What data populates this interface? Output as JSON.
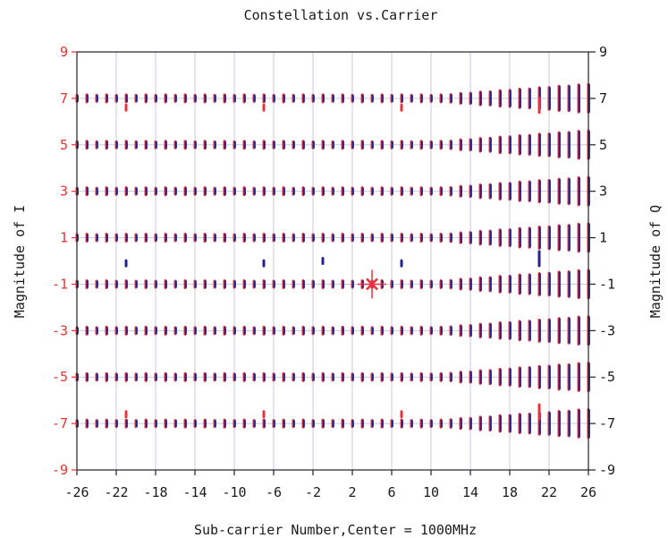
{
  "colors": {
    "series_i": "#e8323c",
    "series_q": "#23238f",
    "grid": "#c9c9e4",
    "left_ticks": "#e8322f",
    "frame": "#222222"
  },
  "chart_data": {
    "type": "scatter",
    "title": "Constellation vs.Carrier",
    "xlabel": "Sub-carrier Number,Center = 1000MHz",
    "ylabel_left": "Magnitude of I",
    "ylabel_right": "Magnitude of Q",
    "xlim": [
      -26,
      26
    ],
    "ylim": [
      -9,
      9
    ],
    "x_ticks": [
      -26,
      -22,
      -18,
      -14,
      -10,
      -6,
      -2,
      2,
      6,
      10,
      14,
      18,
      22,
      26
    ],
    "x_tick_labels": [
      "-26",
      "-22",
      "-18",
      "-14",
      "-10",
      "-6",
      "-2",
      "2",
      "6",
      "10",
      "14",
      "18",
      "22",
      "26"
    ],
    "y_ticks": [
      -9,
      -7,
      -5,
      -3,
      -1,
      1,
      3,
      5,
      7,
      9
    ],
    "y_tick_labels": [
      "-9",
      "-7",
      "-5",
      "-3",
      "-1",
      "1",
      "3",
      "5",
      "7",
      "9"
    ],
    "grid": true,
    "constellation_levels": [
      -7,
      -5,
      -3,
      -1,
      1,
      3,
      5,
      7
    ],
    "subcarriers": [
      -26,
      -25,
      -24,
      -23,
      -22,
      -21,
      -20,
      -19,
      -18,
      -17,
      -16,
      -15,
      -14,
      -13,
      -12,
      -11,
      -10,
      -9,
      -8,
      -7,
      -6,
      -5,
      -4,
      -3,
      -2,
      -1,
      0,
      1,
      2,
      3,
      4,
      5,
      6,
      7,
      8,
      9,
      10,
      11,
      12,
      13,
      14,
      15,
      16,
      17,
      18,
      19,
      20,
      21,
      22,
      23,
      24,
      25,
      26
    ],
    "pilot_points": [
      {
        "x": -21,
        "y": 6.6
      },
      {
        "x": -7,
        "y": 6.6
      },
      {
        "x": 7,
        "y": 6.6
      },
      {
        "x": 21,
        "y": 6.7
      },
      {
        "x": -21,
        "y": -6.6
      },
      {
        "x": -7,
        "y": -6.6
      },
      {
        "x": 7,
        "y": -6.6
      },
      {
        "x": 21,
        "y": -6.5
      },
      {
        "x": -21,
        "y": -0.1
      },
      {
        "x": -7,
        "y": -0.1
      },
      {
        "x": 7,
        "y": -0.1
      },
      {
        "x": 21,
        "y": 0.1
      },
      {
        "x": -1,
        "y": 0.0
      }
    ],
    "marker": {
      "x": 4,
      "y": -1,
      "shape": "x"
    }
  }
}
